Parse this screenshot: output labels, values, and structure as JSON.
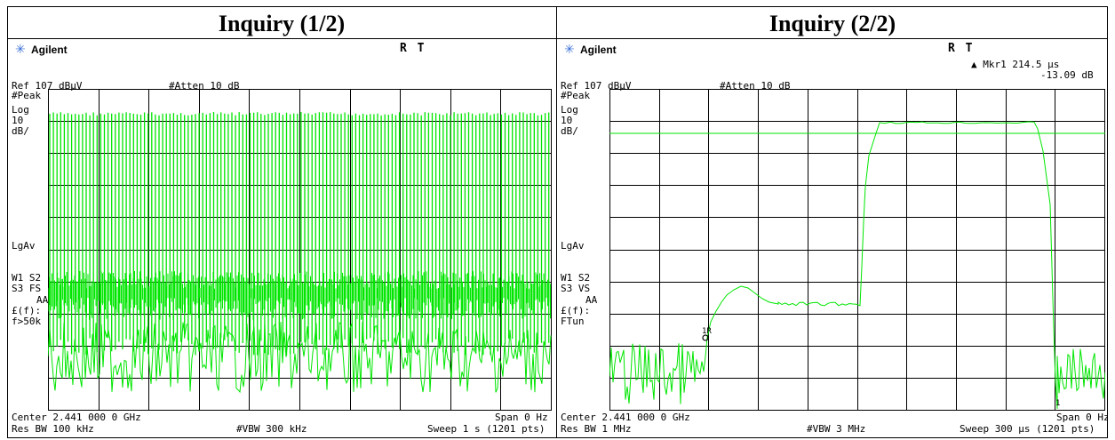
{
  "panels": [
    {
      "heading": "Inquiry (1/2)",
      "brand": "Agilent",
      "mode": "R  T",
      "ref_level": "Ref 107 dBμV",
      "atten": "#Atten 10 dB",
      "left_labels": [
        "#Peak",
        "Log",
        "10",
        "dB/",
        "LgAv",
        "W1  S2",
        "S3  FS",
        "AA",
        "£(f):",
        "f>50k"
      ],
      "center": "Center 2.441 000 0 GHz",
      "span": "Span 0 Hz",
      "res_bw": "Res BW 100 kHz",
      "vbw": "#VBW 300 kHz",
      "sweep": "Sweep 1 s (1201 pts)"
    },
    {
      "heading": "Inquiry (2/2)",
      "brand": "Agilent",
      "mode": "R  T",
      "marker_label": "▲ Mkr1  214.5 μs",
      "marker_value": "-13.09 dB",
      "ref_level": "Ref 107 dBμV",
      "atten": "#Atten 10 dB",
      "left_labels": [
        "#Peak",
        "Log",
        "10",
        "dB/",
        "LgAv",
        "W1  S2",
        "S3  VS",
        "AA",
        "£(f):",
        "FTun"
      ],
      "center": "Center 2.441 000 0 GHz",
      "span": "Span 0 Hz",
      "res_bw": "Res BW 1 MHz",
      "vbw": "#VBW 3 MHz",
      "sweep": "Sweep 300 μs (1201 pts)"
    }
  ],
  "colors": {
    "trace": "#00e600",
    "grid": "#000000",
    "logo": "#3a6fd8"
  },
  "icons": {
    "logo": "agilent-spark-icon"
  }
}
